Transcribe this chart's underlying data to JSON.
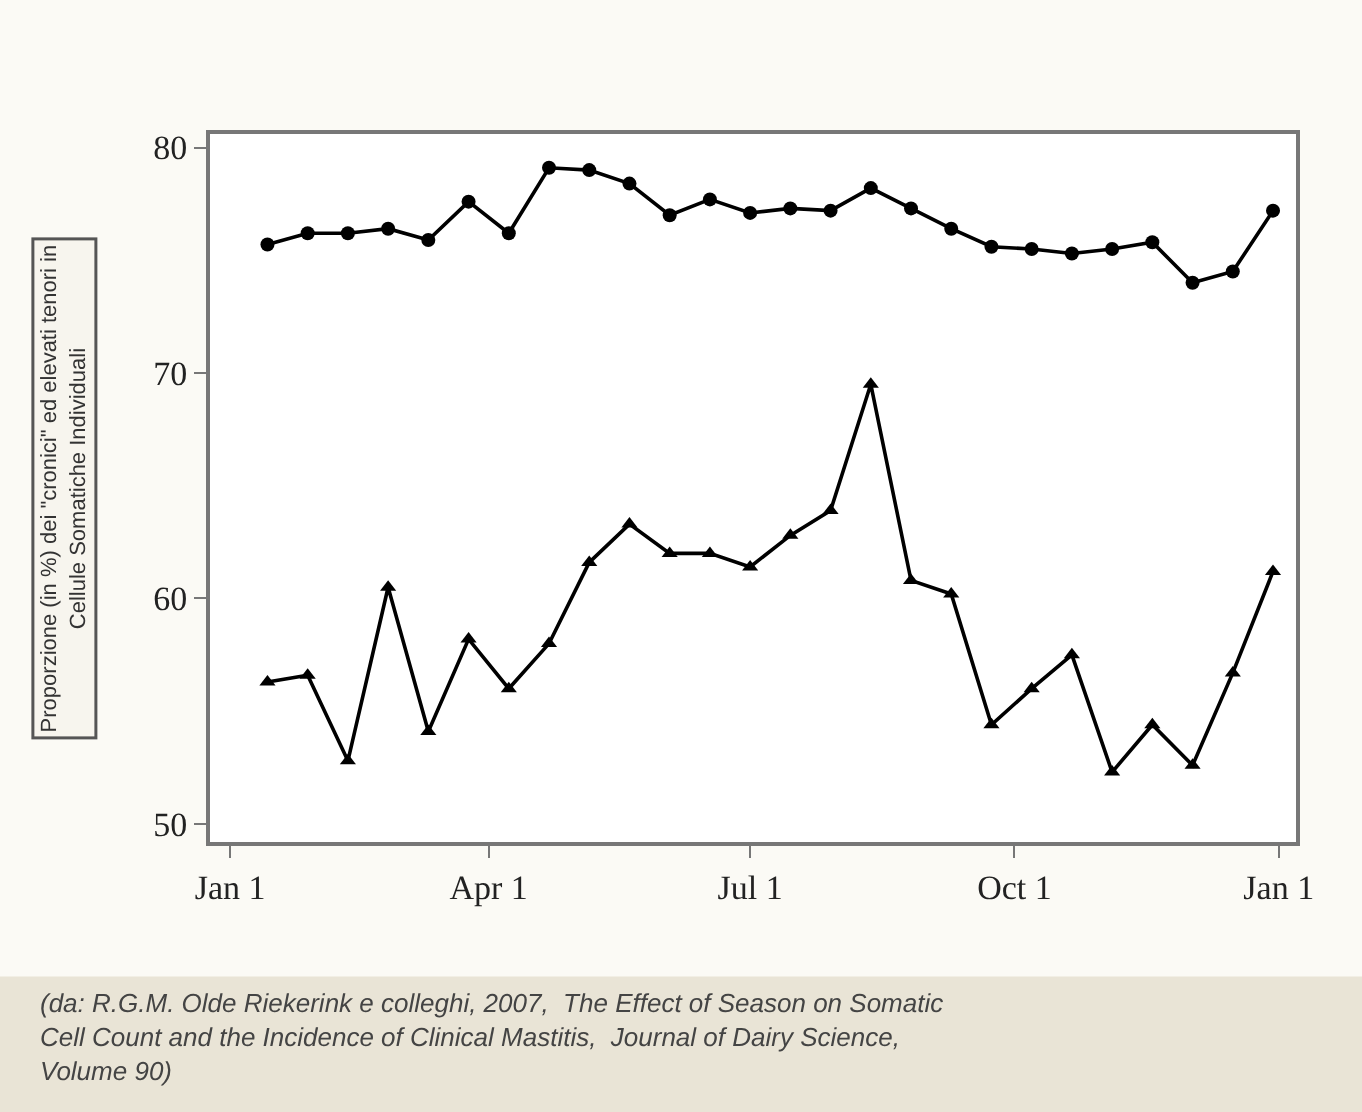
{
  "chart_data": {
    "type": "line",
    "ylabel": "Proporzione (in %) dei \"cronici\" ed elevati tenori in\nCellule Somatiche Individuali",
    "annotations": [
      "(da: R.G.M. Olde Riekerink e colleghi, 2007,  The Effect of Season on Somatic Cell Count and the Incidence of Clinical Mastitis,  Journal of Dairy Science, Volume 90)"
    ],
    "x": [
      "2006-01-14",
      "2006-01-28",
      "2006-02-11",
      "2006-02-25",
      "2006-03-11",
      "2006-03-25",
      "2006-04-08",
      "2006-04-22",
      "2006-05-06",
      "2006-05-20",
      "2006-06-03",
      "2006-06-17",
      "2006-07-01",
      "2006-07-15",
      "2006-07-29",
      "2006-08-12",
      "2006-08-26",
      "2006-09-09",
      "2006-09-23",
      "2006-10-07",
      "2006-10-21",
      "2006-11-04",
      "2006-11-18",
      "2006-12-02",
      "2006-12-16",
      "2006-12-30"
    ],
    "xlim": [
      "2005-12-25",
      "2007-01-07"
    ],
    "xticks": [
      {
        "value": "2006-01-01",
        "label": "Jan 1"
      },
      {
        "value": "2006-04-01",
        "label": "Apr 1"
      },
      {
        "value": "2006-07-01",
        "label": "Jul 1"
      },
      {
        "value": "2006-10-01",
        "label": "Oct 1"
      },
      {
        "value": "2007-01-01",
        "label": "Jan 1"
      }
    ],
    "ylim": [
      49.2,
      80.6
    ],
    "yticks": [
      50,
      60,
      70,
      80
    ],
    "line_style": "solid",
    "series": [
      {
        "color": "#000000",
        "marker": "circle",
        "values": [
          75.7,
          76.2,
          76.2,
          76.4,
          75.9,
          77.6,
          76.2,
          79.1,
          79.0,
          78.4,
          77.0,
          77.7,
          77.1,
          77.3,
          77.2,
          78.2,
          77.3,
          76.4,
          75.6,
          75.5,
          75.3,
          75.5,
          75.8,
          74.0,
          74.5,
          77.2
        ]
      },
      {
        "color": "#000000",
        "marker": "triangle",
        "values": [
          56.3,
          56.6,
          52.8,
          60.5,
          54.1,
          58.2,
          56.0,
          58.0,
          61.6,
          63.3,
          62.0,
          62.0,
          61.4,
          62.8,
          63.9,
          69.5,
          60.8,
          60.2,
          54.4,
          56.0,
          57.5,
          52.3,
          54.4,
          52.6,
          56.7,
          61.2
        ]
      }
    ]
  }
}
